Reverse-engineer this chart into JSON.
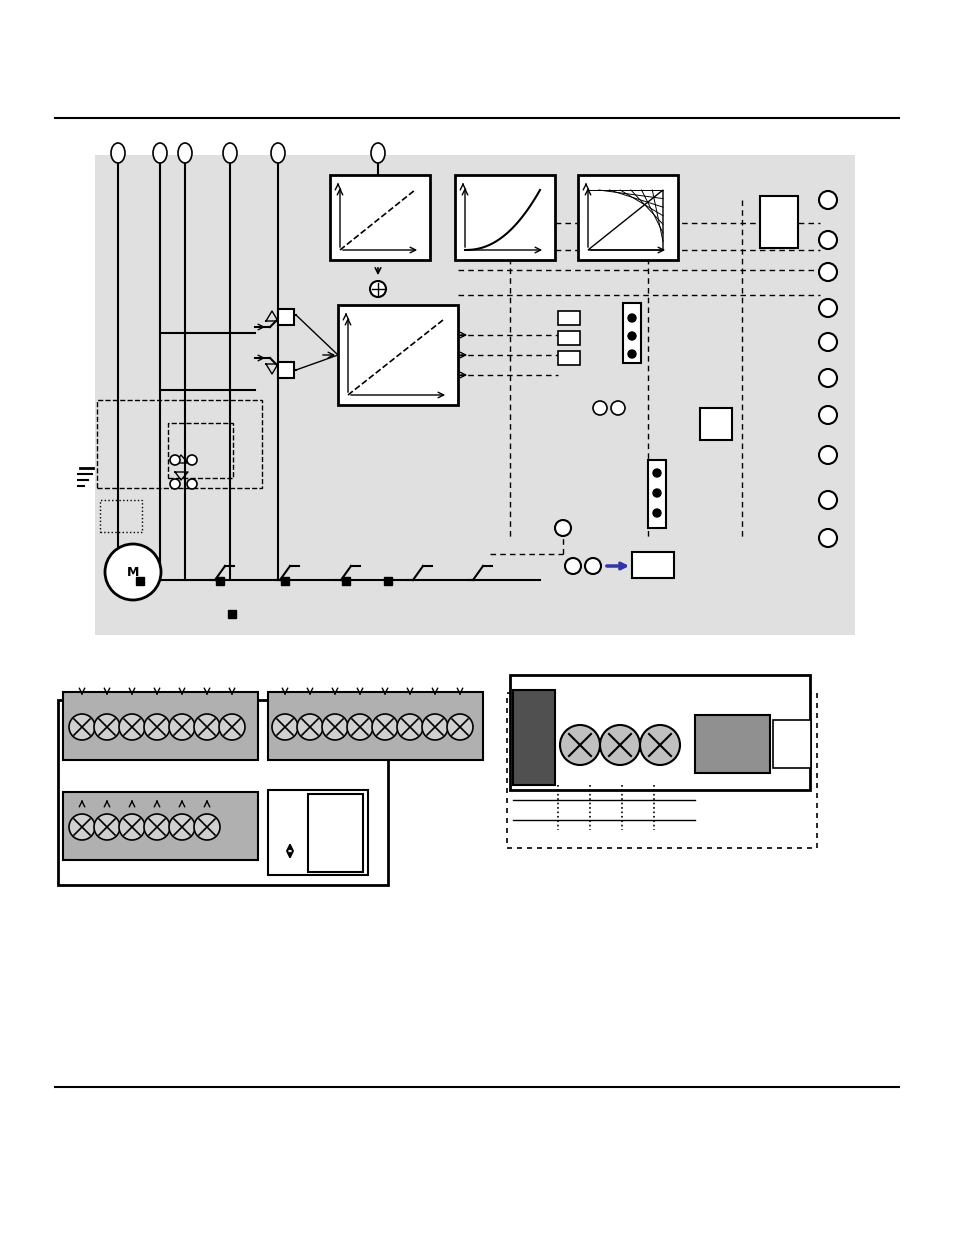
{
  "bg_color": "#ffffff",
  "diagram_bg": "#e8e8e8",
  "line_color": "#000000",
  "dashed_color": "#000000",
  "fig_width": 9.54,
  "fig_height": 12.35
}
